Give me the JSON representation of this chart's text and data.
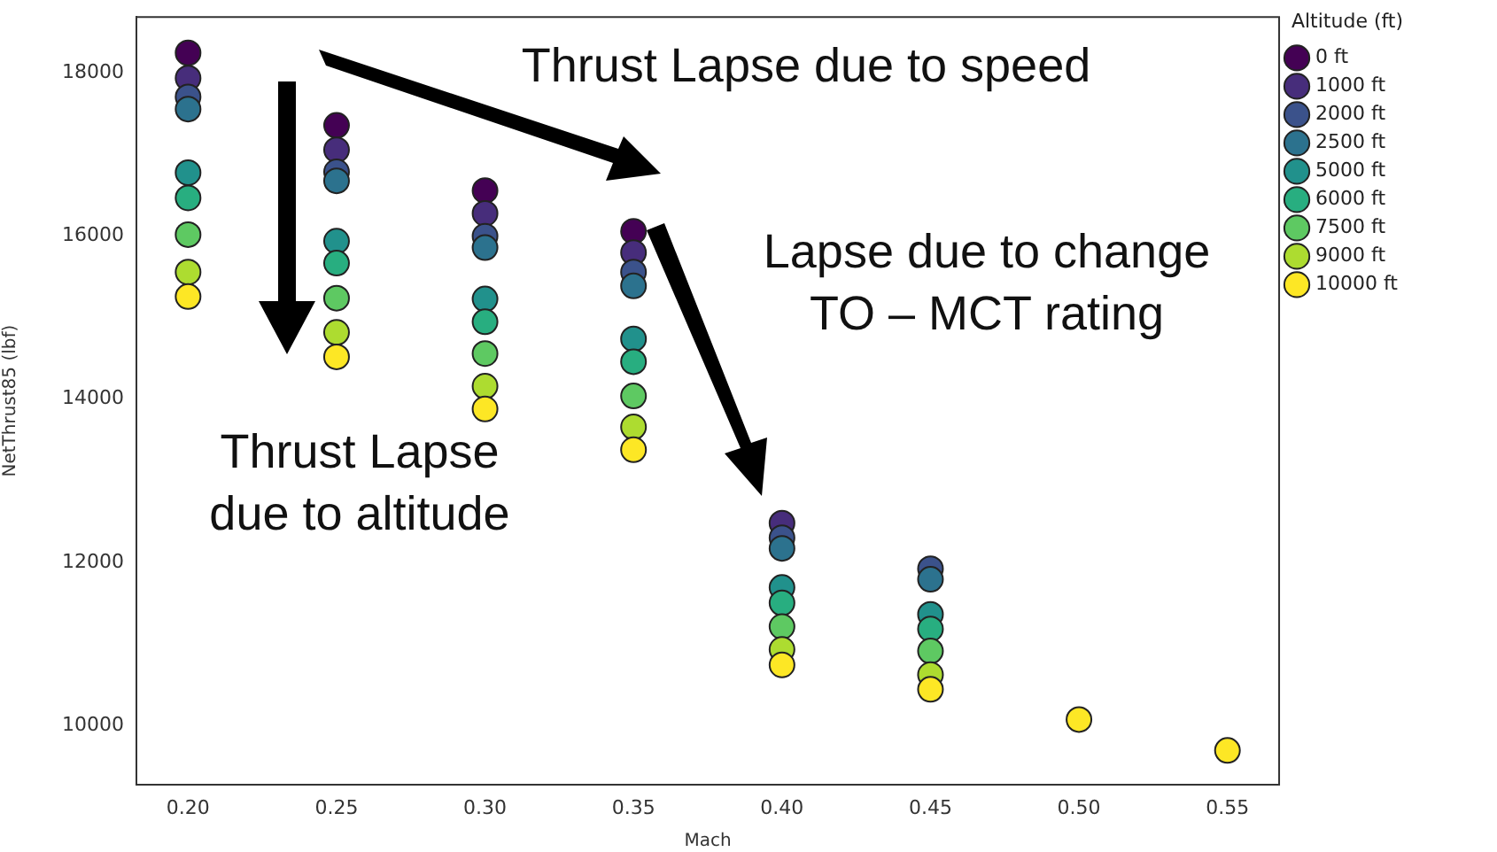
{
  "chart_data": {
    "type": "scatter",
    "xlabel": "Mach",
    "ylabel": "NetThrust85 (lbf)",
    "legend_title": "Altitude (ft)",
    "legend": "right",
    "marker": "circle",
    "grid": false,
    "xlim": [
      0.1826,
      0.5674
    ],
    "ylim": [
      9270,
      18690
    ],
    "xticks": [
      {
        "value": 0.2,
        "label": "0.20"
      },
      {
        "value": 0.25,
        "label": "0.25"
      },
      {
        "value": 0.3,
        "label": "0.30"
      },
      {
        "value": 0.35,
        "label": "0.35"
      },
      {
        "value": 0.4,
        "label": "0.40"
      },
      {
        "value": 0.45,
        "label": "0.45"
      },
      {
        "value": 0.5,
        "label": "0.50"
      },
      {
        "value": 0.55,
        "label": "0.55"
      }
    ],
    "yticks": [
      10000,
      12000,
      14000,
      16000,
      18000
    ],
    "annotations": [
      "Thrust Lapse due to speed",
      "Lapse due to change TO – MCT rating",
      "Thrust Lapse due to altitude"
    ],
    "series": [
      {
        "name": "0 ft",
        "color": "#440154",
        "x": [
          0.2,
          0.25,
          0.3,
          0.35
        ],
        "values": [
          18250,
          17360,
          16560,
          16060
        ]
      },
      {
        "name": "1000 ft",
        "color": "#472d7b",
        "x": [
          0.2,
          0.25,
          0.3,
          0.35,
          0.4
        ],
        "values": [
          17940,
          17060,
          16280,
          15800,
          12480
        ]
      },
      {
        "name": "2000 ft",
        "color": "#3b528b",
        "x": [
          0.2,
          0.25,
          0.3,
          0.35,
          0.4,
          0.45
        ],
        "values": [
          17710,
          16790,
          16000,
          15560,
          12300,
          11920
        ]
      },
      {
        "name": "2500 ft",
        "color": "#2c728e",
        "x": [
          0.2,
          0.25,
          0.3,
          0.35,
          0.4,
          0.45
        ],
        "values": [
          17560,
          16680,
          15860,
          15390,
          12170,
          11790
        ]
      },
      {
        "name": "5000 ft",
        "color": "#21918c",
        "x": [
          0.2,
          0.25,
          0.3,
          0.35,
          0.4,
          0.45
        ],
        "values": [
          16780,
          15940,
          15230,
          14740,
          11690,
          11360
        ]
      },
      {
        "name": "6000 ft",
        "color": "#28ae80",
        "x": [
          0.2,
          0.25,
          0.3,
          0.35,
          0.4,
          0.45
        ],
        "values": [
          16470,
          15670,
          14950,
          14460,
          11500,
          11180
        ]
      },
      {
        "name": "7500 ft",
        "color": "#5ec962",
        "x": [
          0.2,
          0.25,
          0.3,
          0.35,
          0.4,
          0.45
        ],
        "values": [
          16020,
          15240,
          14560,
          14040,
          11210,
          10910
        ]
      },
      {
        "name": "9000 ft",
        "color": "#addc30",
        "x": [
          0.2,
          0.25,
          0.3,
          0.35,
          0.4,
          0.45
        ],
        "values": [
          15560,
          14820,
          14160,
          13660,
          10930,
          10620
        ]
      },
      {
        "name": "10000 ft",
        "color": "#fde725",
        "x": [
          0.2,
          0.25,
          0.3,
          0.35,
          0.4,
          0.45,
          0.5,
          0.55
        ],
        "values": [
          15260,
          14520,
          13880,
          13380,
          10740,
          10440,
          10070,
          9690
        ]
      }
    ]
  }
}
